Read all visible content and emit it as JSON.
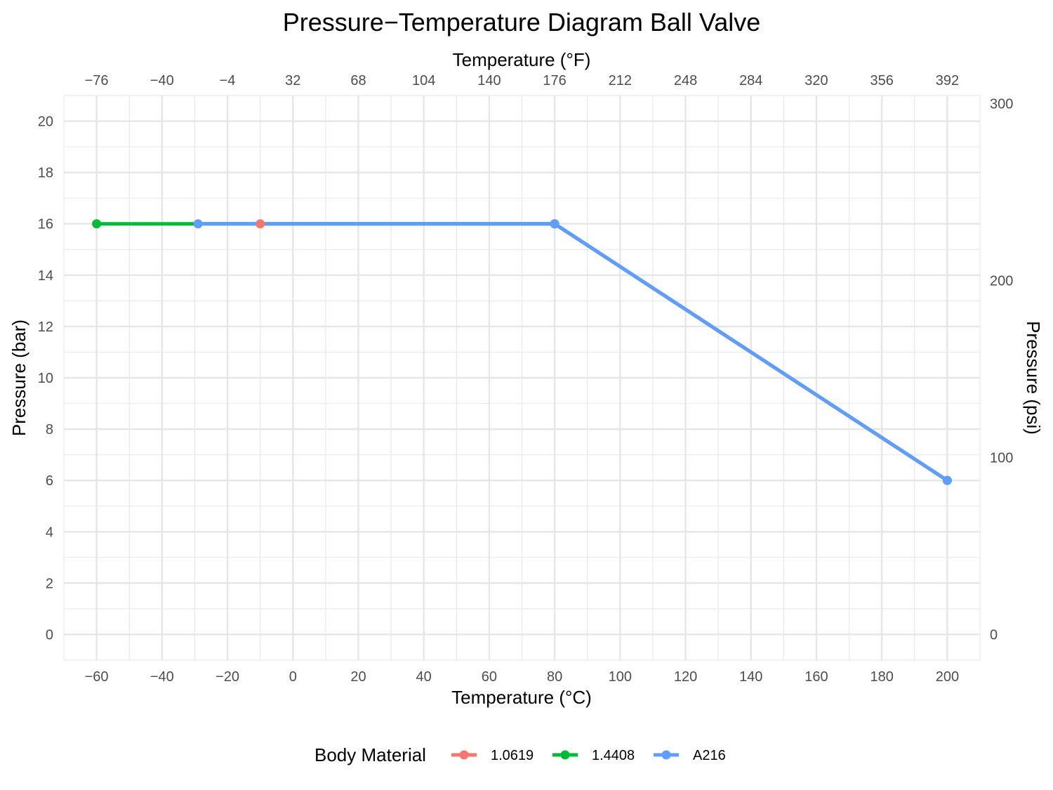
{
  "chart_data": {
    "type": "line",
    "title": "Pressure−Temperature Diagram Ball Valve",
    "xlabel": "Temperature (°C)",
    "x2label": "Temperature (°F)",
    "ylabel": "Pressure (bar)",
    "y2label": "Pressure (psi)",
    "xlim": [
      -70,
      210
    ],
    "ylim": [
      -1,
      21
    ],
    "x_ticks": [
      "−60",
      "−40",
      "−20",
      "0",
      "20",
      "40",
      "60",
      "80",
      "100",
      "120",
      "140",
      "160",
      "180",
      "200"
    ],
    "x2_ticks": [
      "−76",
      "−40",
      "−4",
      "32",
      "68",
      "104",
      "140",
      "176",
      "212",
      "248",
      "284",
      "320",
      "356",
      "392"
    ],
    "y_ticks": [
      "0",
      "2",
      "4",
      "6",
      "8",
      "10",
      "12",
      "14",
      "16",
      "18",
      "20"
    ],
    "y2_ticks": [
      "0",
      "100",
      "200",
      "300"
    ],
    "grid": true,
    "legend": {
      "title": "Body Material",
      "position": "bottom"
    },
    "series": [
      {
        "name": "1.0619",
        "color": "#F8766D",
        "x": [
          -10,
          80,
          200
        ],
        "y": [
          16,
          16,
          6
        ]
      },
      {
        "name": "1.4408",
        "color": "#00BA38",
        "x": [
          -60,
          80,
          200
        ],
        "y": [
          16,
          16,
          6
        ]
      },
      {
        "name": "A216",
        "color": "#619CFF",
        "x": [
          -29,
          80,
          200
        ],
        "y": [
          16,
          16,
          6
        ]
      }
    ]
  }
}
